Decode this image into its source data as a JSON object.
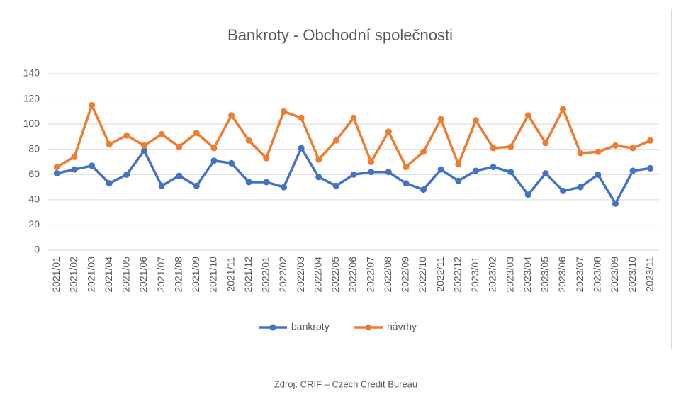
{
  "chart_data": {
    "type": "line",
    "title": "Bankroty - Obchodní společnosti",
    "categories": [
      "2021/01",
      "2021/02",
      "2021/03",
      "2021/04",
      "2021/05",
      "2021/06",
      "2021/07",
      "2021/08",
      "2021/09",
      "2021/10",
      "2021/11",
      "2021/12",
      "2022/01",
      "2022/02",
      "2022/03",
      "2022/04",
      "2022/05",
      "2022/06",
      "2022/07",
      "2022/08",
      "2022/09",
      "2022/10",
      "2022/11",
      "2022/12",
      "2023/01",
      "2023/02",
      "2023/03",
      "2023/04",
      "2023/05",
      "2023/06",
      "2023/07",
      "2023/08",
      "2023/09",
      "2023/10",
      "2023/11"
    ],
    "series": [
      {
        "name": "bankroty",
        "color": "#4472c4",
        "values": [
          61,
          64,
          67,
          53,
          60,
          79,
          51,
          59,
          51,
          71,
          69,
          54,
          54,
          50,
          81,
          58,
          51,
          60,
          62,
          62,
          53,
          48,
          64,
          55,
          63,
          66,
          62,
          44,
          61,
          47,
          50,
          60,
          37,
          63,
          65
        ]
      },
      {
        "name": "návrhy",
        "color": "#ed7d31",
        "values": [
          66,
          74,
          115,
          84,
          91,
          83,
          92,
          82,
          93,
          81,
          107,
          87,
          73,
          110,
          105,
          72,
          87,
          105,
          70,
          94,
          66,
          78,
          104,
          68,
          103,
          81,
          82,
          107,
          85,
          112,
          77,
          78,
          83,
          81,
          87
        ]
      }
    ],
    "ylim": [
      0,
      140
    ],
    "yticks": [
      0,
      20,
      40,
      60,
      80,
      100,
      120,
      140
    ],
    "grid": true,
    "legend": "bottom"
  },
  "source": "Zdroj: CRIF – Czech Credit Bureau"
}
